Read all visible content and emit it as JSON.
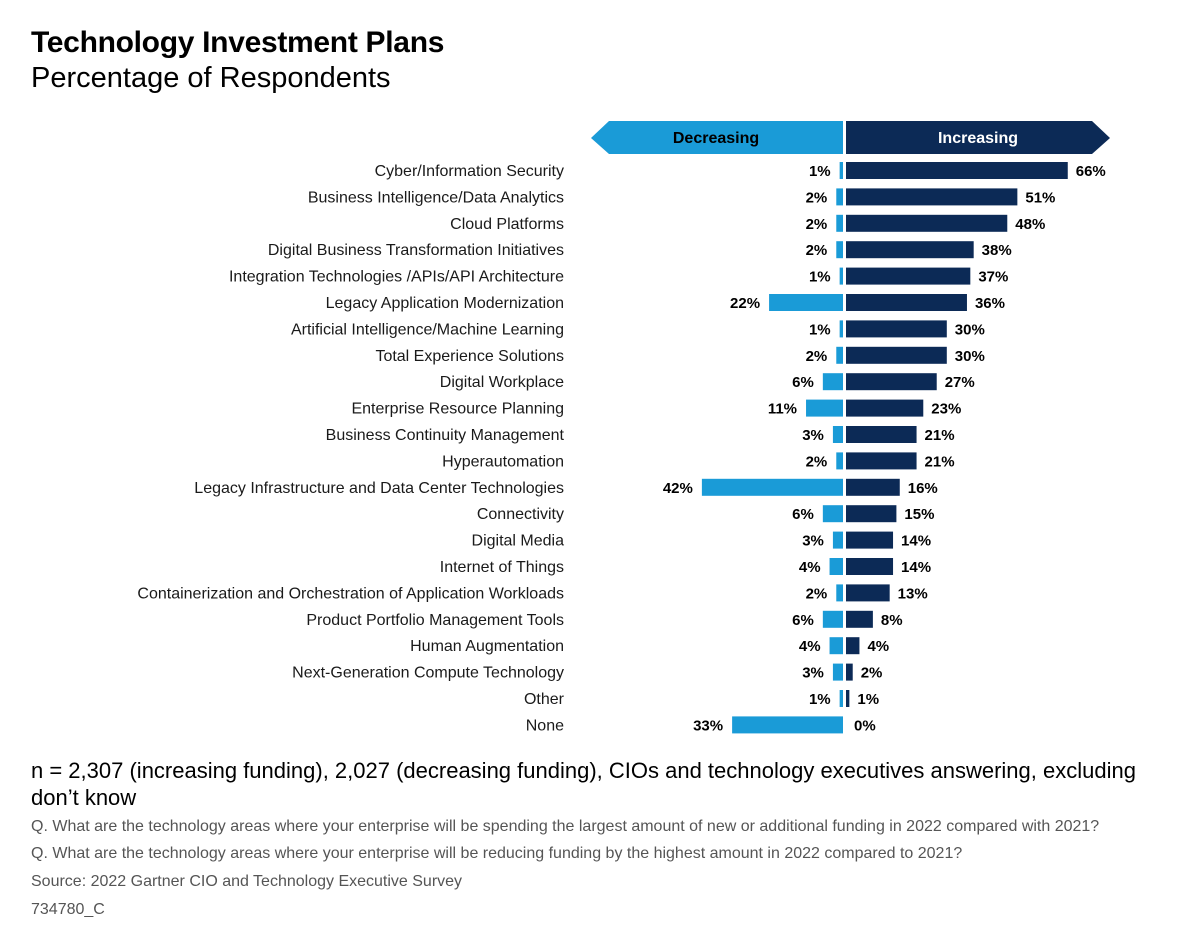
{
  "chart_data": {
    "type": "bar",
    "orientation": "horizontal-diverging",
    "title": "Technology Investment Plans",
    "subtitle": "Percentage of Respondents",
    "header_left": "Decreasing",
    "header_right": "Increasing",
    "unit": "%",
    "categories": [
      "Cyber/Information Security",
      "Business Intelligence/Data Analytics",
      "Cloud Platforms",
      "Digital Business Transformation Initiatives",
      "Integration Technologies /APIs/API Architecture",
      "Legacy Application Modernization",
      "Artificial Intelligence/Machine Learning",
      "Total Experience Solutions",
      "Digital Workplace",
      "Enterprise Resource Planning",
      "Business Continuity Management",
      "Hyperautomation",
      "Legacy Infrastructure and Data Center Technologies",
      "Connectivity",
      "Digital Media",
      "Internet of Things",
      "Containerization and Orchestration of Application Workloads",
      "Product Portfolio Management Tools",
      "Human Augmentation",
      "Next-Generation Compute Technology",
      "Other",
      "None"
    ],
    "series": [
      {
        "name": "Decreasing",
        "color": "#1a9bd7",
        "values": [
          1,
          2,
          2,
          2,
          1,
          22,
          1,
          2,
          6,
          11,
          3,
          2,
          42,
          6,
          3,
          4,
          2,
          6,
          4,
          3,
          1,
          33
        ]
      },
      {
        "name": "Increasing",
        "color": "#0c2a56",
        "values": [
          66,
          51,
          48,
          38,
          37,
          36,
          30,
          30,
          27,
          23,
          21,
          21,
          16,
          15,
          14,
          14,
          13,
          8,
          4,
          2,
          1,
          0
        ]
      }
    ]
  },
  "footer": {
    "note": "n = 2,307 (increasing funding), 2,027 (decreasing funding), CIOs and technology executives answering, excluding don’t know",
    "question1": "Q. What are the technology areas where your enterprise will be spending the largest amount of new or additional funding in 2022 compared with 2021?",
    "question2": "Q. What are the technology areas where your enterprise will be reducing funding by the highest amount in 2022 compared to 2021?",
    "source": "Source: 2022 Gartner CIO and Technology Executive Survey",
    "code": "734780_C"
  }
}
